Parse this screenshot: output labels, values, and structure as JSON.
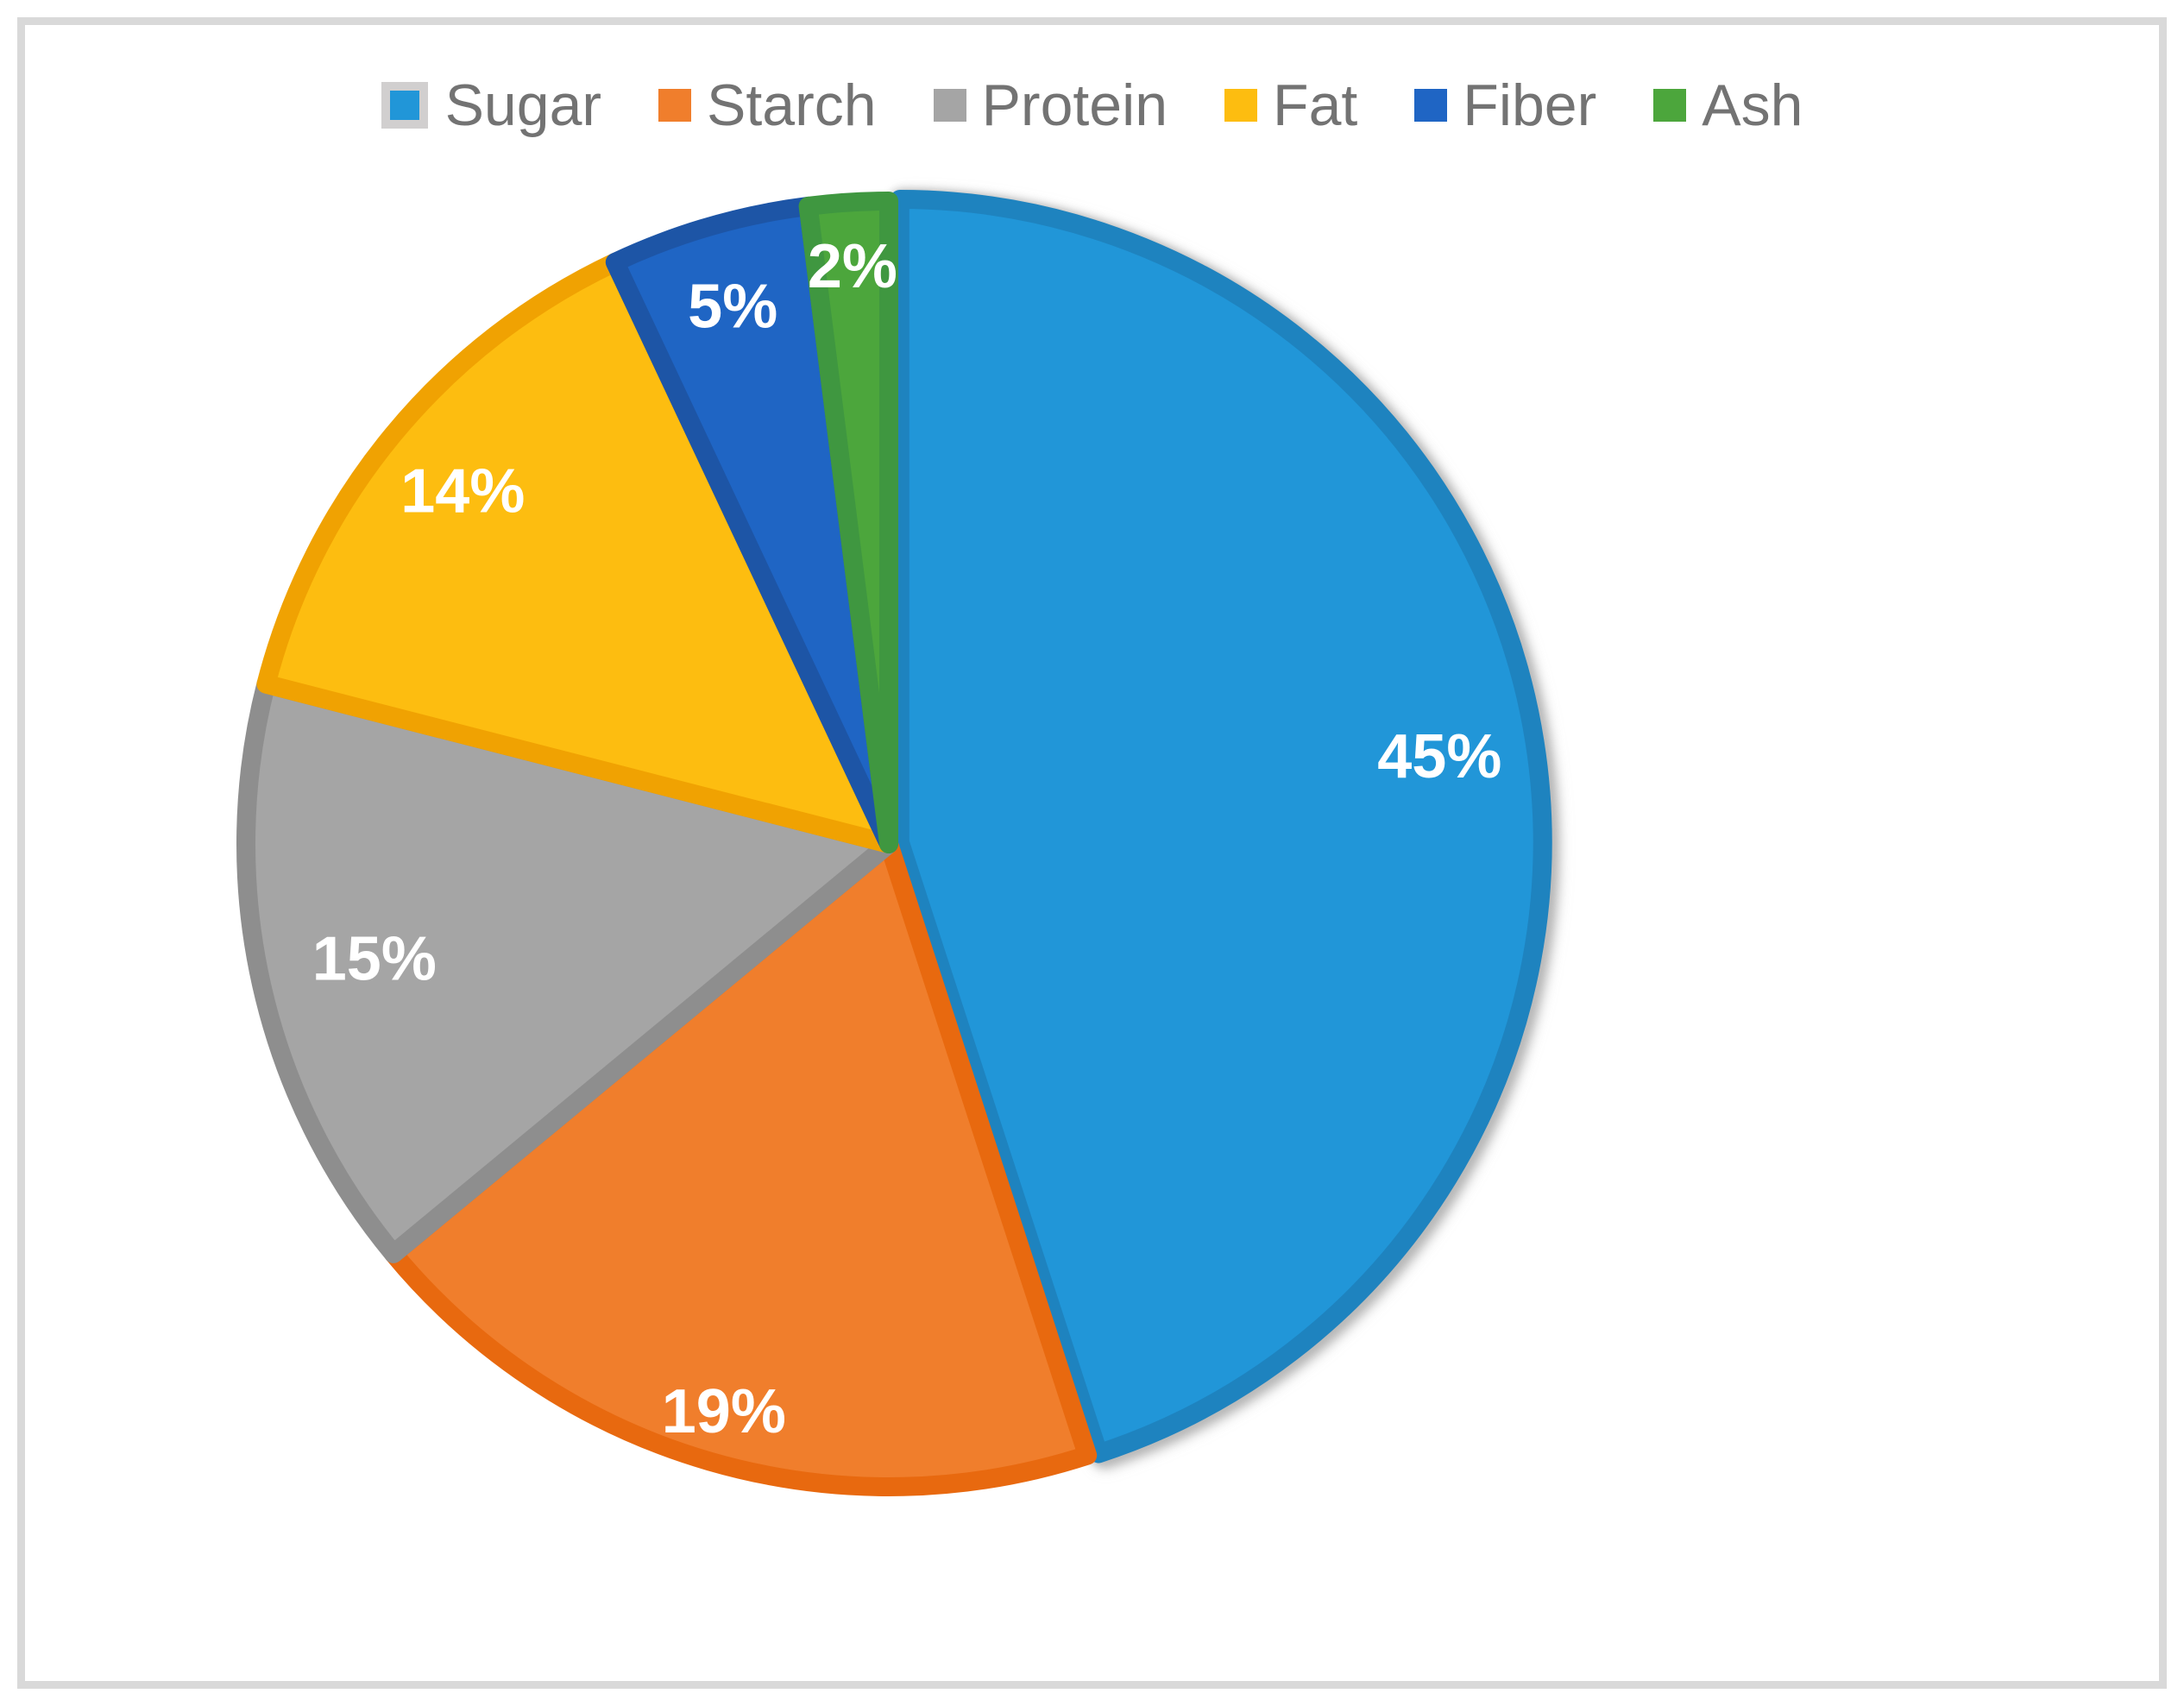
{
  "chart_data": {
    "type": "pie",
    "title": "",
    "unit": "%",
    "legend_position": "top",
    "direction": "clockwise",
    "start_angle_deg": 0,
    "categories": [
      "Sugar",
      "Starch",
      "Protein",
      "Fat",
      "Fiber",
      "Ash"
    ],
    "values": [
      45,
      19,
      15,
      14,
      5,
      2
    ],
    "slices": [
      {
        "label": "Sugar",
        "value": 45,
        "display": "45%",
        "color": "#2196d8",
        "border": "#1e83bf",
        "label_r": 0.85,
        "exploded": true,
        "shadow_color": "#bdbdbd"
      },
      {
        "label": "Starch",
        "value": 19,
        "display": "19%",
        "color": "#f07e2c",
        "border": "#e8690f",
        "label_r": 0.92,
        "exploded": false
      },
      {
        "label": "Protein",
        "value": 15,
        "display": "15%",
        "color": "#a5a5a5",
        "border": "#8e8e8e",
        "label_r": 0.82,
        "exploded": false
      },
      {
        "label": "Fat",
        "value": 14,
        "display": "14%",
        "color": "#fdbd10",
        "border": "#f0a202",
        "label_r": 0.86,
        "exploded": false
      },
      {
        "label": "Fiber",
        "value": 5,
        "display": "5%",
        "color": "#1f65c4",
        "border": "#1d55a6",
        "label_r": 0.87,
        "exploded": false
      },
      {
        "label": "Ash",
        "value": 2,
        "display": "2%",
        "color": "#4ca63c",
        "border": "#3f9740",
        "label_r": 0.9,
        "exploded": false
      }
    ],
    "label_text_color": "#ffffff",
    "legend_text_color": "#737373",
    "legend_key_shadow_color": "#d1cfcf",
    "frame_color": "#d9d9d9"
  }
}
